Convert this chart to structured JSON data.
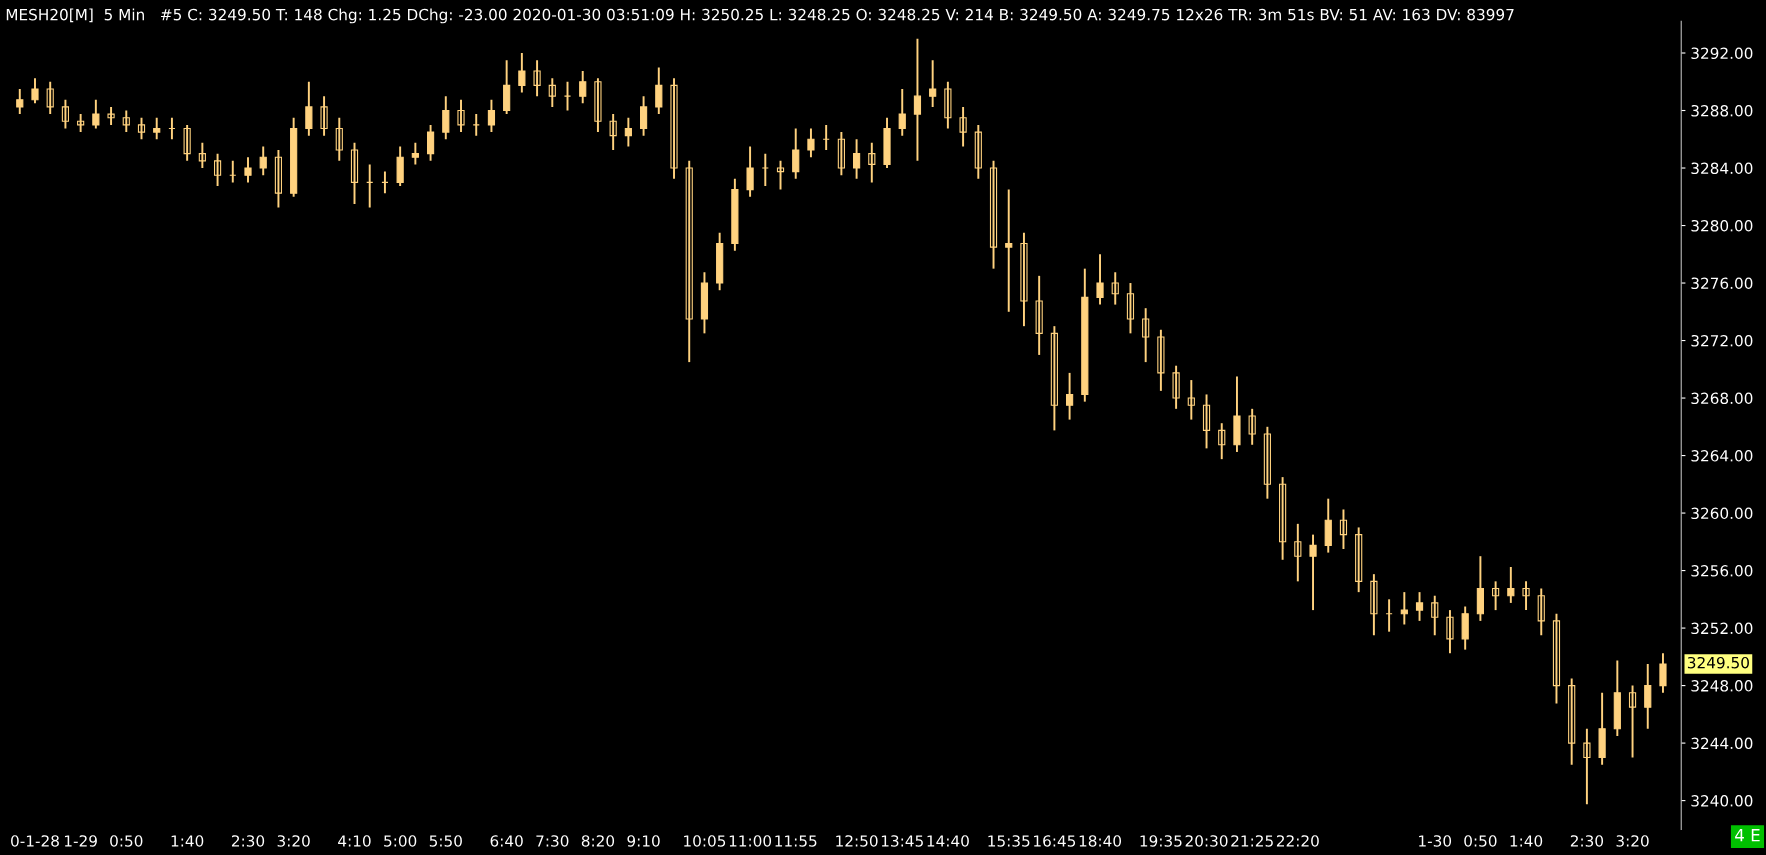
{
  "chart_data": {
    "type": "candlestick",
    "title": "MESH20[M]  5 Min   #5 C: 3249.50 T: 148 Chg: 1.25 DChg: -23.00 2020-01-30 03:51:09 H: 3250.25 L: 3248.25 O: 3248.25 V: 214 B: 3249.50 A: 3249.75 12x26 TR: 3m 51s BV: 51 AV: 163 DV: 83997",
    "categories": [
      null,
      "0-1-28",
      null,
      null,
      "1-29",
      null,
      null,
      "0:50",
      null,
      null,
      null,
      "1:40",
      null,
      null,
      null,
      "2:30",
      null,
      null,
      "3:20",
      null,
      null,
      null,
      "4:10",
      null,
      null,
      "5:00",
      null,
      null,
      "5:50",
      null,
      null,
      null,
      "6:40",
      null,
      null,
      "7:30",
      null,
      null,
      "8:20",
      null,
      null,
      "9:10",
      null,
      null,
      null,
      "10:05",
      null,
      null,
      "11:00",
      null,
      null,
      "11:55",
      null,
      null,
      null,
      "12:50",
      null,
      null,
      "13:45",
      null,
      null,
      "14:40",
      null,
      null,
      null,
      "15:35",
      null,
      null,
      "16:45",
      null,
      null,
      "18:40",
      null,
      null,
      null,
      "19:35",
      null,
      null,
      "20:30",
      null,
      null,
      "21:25",
      null,
      null,
      "22:20",
      null,
      null,
      null,
      null,
      null,
      null,
      null,
      null,
      "1-30",
      null,
      null,
      "0:50",
      null,
      null,
      "1:40",
      null,
      null,
      null,
      "2:30",
      null,
      null,
      "3:20",
      null,
      null
    ],
    "color": "#ffd27f",
    "ohlc": [
      [
        3288.25,
        3289.5,
        3287.75,
        3288.75
      ],
      [
        3288.75,
        3290.25,
        3288.5,
        3289.5
      ],
      [
        3289.5,
        3290,
        3287.75,
        3288.25
      ],
      [
        3288.25,
        3288.75,
        3286.75,
        3287.25
      ],
      [
        3287.25,
        3287.75,
        3286.5,
        3287
      ],
      [
        3287,
        3288.75,
        3286.75,
        3287.75
      ],
      [
        3287.75,
        3288.25,
        3287,
        3287.5
      ],
      [
        3287.5,
        3288,
        3286.5,
        3287
      ],
      [
        3287,
        3287.5,
        3286,
        3286.5
      ],
      [
        3286.5,
        3287.5,
        3286,
        3286.75
      ],
      [
        3286.75,
        3287.5,
        3286,
        3286.75
      ],
      [
        3286.75,
        3287,
        3284.5,
        3285
      ],
      [
        3285,
        3285.75,
        3284,
        3284.5
      ],
      [
        3284.5,
        3285,
        3282.75,
        3283.5
      ],
      [
        3283.5,
        3284.5,
        3283,
        3283.5
      ],
      [
        3283.5,
        3284.75,
        3283,
        3284
      ],
      [
        3284,
        3285.5,
        3283.5,
        3284.75
      ],
      [
        3284.75,
        3285.25,
        3281.25,
        3282.25
      ],
      [
        3282.25,
        3287.5,
        3282,
        3286.75
      ],
      [
        3286.75,
        3290,
        3286.25,
        3288.25
      ],
      [
        3288.25,
        3289,
        3286.25,
        3286.75
      ],
      [
        3286.75,
        3287.5,
        3284.5,
        3285.25
      ],
      [
        3285.25,
        3285.75,
        3281.5,
        3283
      ],
      [
        3283,
        3284.25,
        3281.25,
        3283
      ],
      [
        3283,
        3283.75,
        3282.25,
        3283
      ],
      [
        3283,
        3285.5,
        3282.75,
        3284.75
      ],
      [
        3284.75,
        3285.75,
        3284.25,
        3285
      ],
      [
        3285,
        3287,
        3284.5,
        3286.5
      ],
      [
        3286.5,
        3289,
        3286,
        3288
      ],
      [
        3288,
        3288.75,
        3286.5,
        3287
      ],
      [
        3287,
        3287.75,
        3286.25,
        3287
      ],
      [
        3287,
        3288.75,
        3286.5,
        3288
      ],
      [
        3288,
        3291.5,
        3287.75,
        3289.75
      ],
      [
        3289.75,
        3292,
        3289.25,
        3290.75
      ],
      [
        3290.75,
        3291.5,
        3289,
        3289.75
      ],
      [
        3289.75,
        3290.25,
        3288.25,
        3289
      ],
      [
        3289,
        3290,
        3288,
        3289
      ],
      [
        3289,
        3290.75,
        3288.5,
        3290
      ],
      [
        3290,
        3290.25,
        3286.5,
        3287.25
      ],
      [
        3287.25,
        3287.75,
        3285.25,
        3286.25
      ],
      [
        3286.25,
        3287.5,
        3285.5,
        3286.75
      ],
      [
        3286.75,
        3289,
        3286.25,
        3288.25
      ],
      [
        3288.25,
        3291,
        3287.75,
        3289.75
      ],
      [
        3289.75,
        3290.25,
        3283.25,
        3284
      ],
      [
        3284,
        3284.5,
        3270.5,
        3273.5
      ],
      [
        3273.5,
        3276.75,
        3272.5,
        3276
      ],
      [
        3276,
        3279.5,
        3275.5,
        3278.75
      ],
      [
        3278.75,
        3283.25,
        3278.25,
        3282.5
      ],
      [
        3282.5,
        3285.5,
        3282,
        3284
      ],
      [
        3284,
        3285,
        3282.75,
        3284
      ],
      [
        3284,
        3284.5,
        3282.5,
        3283.75
      ],
      [
        3283.75,
        3286.75,
        3283.25,
        3285.25
      ],
      [
        3285.25,
        3286.75,
        3284.75,
        3286
      ],
      [
        3286,
        3287,
        3285.25,
        3286
      ],
      [
        3286,
        3286.5,
        3283.5,
        3284
      ],
      [
        3284,
        3286,
        3283.25,
        3285
      ],
      [
        3285,
        3285.75,
        3283,
        3284.25
      ],
      [
        3284.25,
        3287.5,
        3284,
        3286.75
      ],
      [
        3286.75,
        3289.5,
        3286.25,
        3287.75
      ],
      [
        3287.75,
        3293,
        3284.5,
        3289
      ],
      [
        3289,
        3291.5,
        3288.25,
        3289.5
      ],
      [
        3289.5,
        3290,
        3286.75,
        3287.5
      ],
      [
        3287.5,
        3288.25,
        3285.5,
        3286.5
      ],
      [
        3286.5,
        3287,
        3283.25,
        3284
      ],
      [
        3284,
        3284.5,
        3277,
        3278.5
      ],
      [
        3278.5,
        3282.5,
        3274,
        3278.75
      ],
      [
        3278.75,
        3279.5,
        3273,
        3274.75
      ],
      [
        3274.75,
        3276.5,
        3271,
        3272.5
      ],
      [
        3272.5,
        3273,
        3265.75,
        3267.5
      ],
      [
        3267.5,
        3269.75,
        3266.5,
        3268.25
      ],
      [
        3268.25,
        3277,
        3267.75,
        3275
      ],
      [
        3275,
        3278,
        3274.5,
        3276
      ],
      [
        3276,
        3276.75,
        3274.5,
        3275.25
      ],
      [
        3275.25,
        3276,
        3272.5,
        3273.5
      ],
      [
        3273.5,
        3274.25,
        3270.5,
        3272.25
      ],
      [
        3272.25,
        3272.75,
        3268.5,
        3269.75
      ],
      [
        3269.75,
        3270.25,
        3267.25,
        3268
      ],
      [
        3268,
        3269.25,
        3266.5,
        3267.5
      ],
      [
        3267.5,
        3268.25,
        3264.5,
        3265.75
      ],
      [
        3265.75,
        3266.25,
        3263.75,
        3264.75
      ],
      [
        3264.75,
        3269.5,
        3264.25,
        3266.75
      ],
      [
        3266.75,
        3267.25,
        3264.75,
        3265.5
      ],
      [
        3265.5,
        3266,
        3261,
        3262
      ],
      [
        3262,
        3262.5,
        3256.75,
        3258
      ],
      [
        3258,
        3259.25,
        3255.25,
        3257
      ],
      [
        3257,
        3258.5,
        3253.25,
        3257.75
      ],
      [
        3257.75,
        3261,
        3257.25,
        3259.5
      ],
      [
        3259.5,
        3260.25,
        3257.5,
        3258.5
      ],
      [
        3258.5,
        3259,
        3254.5,
        3255.25
      ],
      [
        3255.25,
        3255.75,
        3251.5,
        3253
      ],
      [
        3253,
        3254,
        3251.75,
        3253
      ],
      [
        3253,
        3254.5,
        3252.25,
        3253.25
      ],
      [
        3253.25,
        3254.5,
        3252.5,
        3253.75
      ],
      [
        3253.75,
        3254.25,
        3251.5,
        3252.75
      ],
      [
        3252.75,
        3253.25,
        3250.25,
        3251.25
      ],
      [
        3251.25,
        3253.5,
        3250.5,
        3253
      ],
      [
        3253,
        3257,
        3252.5,
        3254.75
      ],
      [
        3254.75,
        3255.25,
        3253.25,
        3254.25
      ],
      [
        3254.25,
        3256.25,
        3253.75,
        3254.75
      ],
      [
        3254.75,
        3255.25,
        3253.25,
        3254.25
      ],
      [
        3254.25,
        3254.75,
        3251.5,
        3252.5
      ],
      [
        3252.5,
        3253,
        3246.75,
        3248
      ],
      [
        3248,
        3248.5,
        3242.5,
        3244
      ],
      [
        3244,
        3245,
        3239.75,
        3243
      ],
      [
        3243,
        3247.5,
        3242.5,
        3245
      ],
      [
        3245,
        3249.75,
        3244.5,
        3247.5
      ],
      [
        3247.5,
        3248,
        3243,
        3246.5
      ],
      [
        3246.5,
        3249.5,
        3245,
        3248
      ],
      [
        3248,
        3250.25,
        3247.5,
        3249.5
      ]
    ],
    "ylim": [
      3238,
      3294.2
    ],
    "yticks": [
      {
        "value": 3240,
        "label": "3240.00"
      },
      {
        "value": 3244,
        "label": "3244.00"
      },
      {
        "value": 3248,
        "label": "3248.00"
      },
      {
        "value": 3252,
        "label": "3252.00"
      },
      {
        "value": 3256,
        "label": "3256.00"
      },
      {
        "value": 3260,
        "label": "3260.00"
      },
      {
        "value": 3264,
        "label": "3264.00"
      },
      {
        "value": 3268,
        "label": "3268.00"
      },
      {
        "value": 3272,
        "label": "3272.00"
      },
      {
        "value": 3276,
        "label": "3276.00"
      },
      {
        "value": 3280,
        "label": "3280.00"
      },
      {
        "value": 3284,
        "label": "3284.00"
      },
      {
        "value": 3288,
        "label": "3288.00"
      },
      {
        "value": 3292,
        "label": "3292.00"
      }
    ],
    "annotations": [
      "3249.50",
      "4 E"
    ],
    "grid": false
  }
}
